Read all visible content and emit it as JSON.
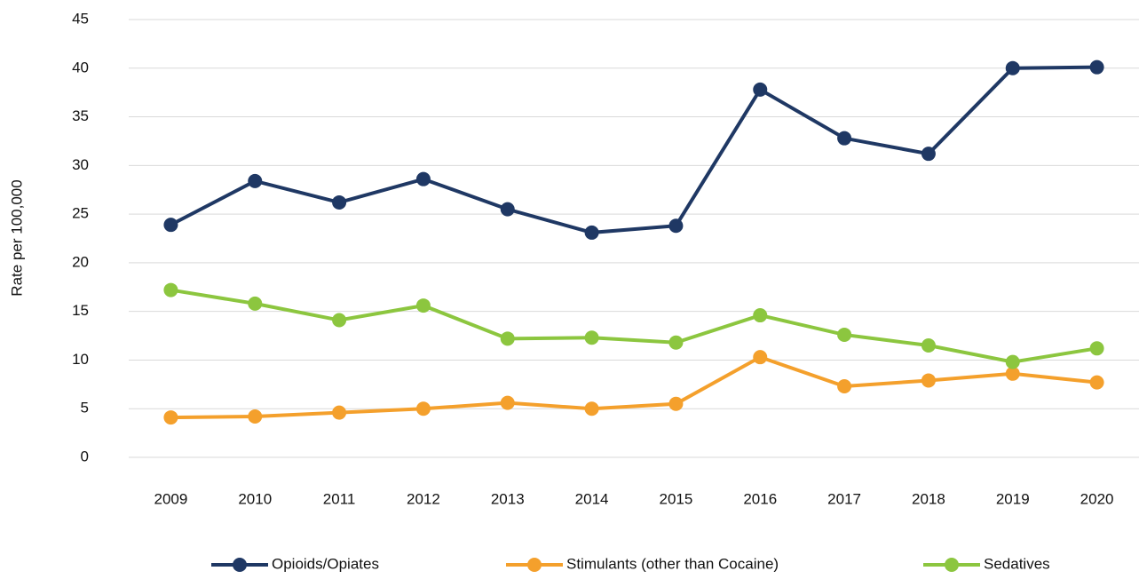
{
  "chart_data": {
    "type": "line",
    "y_label": "Rate per 100,000",
    "categories": [
      "2009",
      "2010",
      "2011",
      "2012",
      "2013",
      "2014",
      "2015",
      "2016",
      "2017",
      "2018",
      "2019",
      "2020"
    ],
    "series": [
      {
        "name": "Opioids/Opiates",
        "color": "#1f3864",
        "values": [
          23.9,
          28.4,
          26.2,
          28.6,
          25.5,
          23.1,
          23.8,
          37.8,
          32.8,
          31.2,
          40.0,
          40.1
        ]
      },
      {
        "name": "Stimulants (other than Cocaine)",
        "color": "#f4a02c",
        "values": [
          4.1,
          4.2,
          4.6,
          5.0,
          5.6,
          5.0,
          5.5,
          10.3,
          7.3,
          7.9,
          8.6,
          7.7
        ]
      },
      {
        "name": "Sedatives",
        "color": "#8cc63f",
        "values": [
          17.2,
          15.8,
          14.1,
          15.6,
          12.2,
          12.3,
          11.8,
          14.6,
          12.6,
          11.5,
          9.8,
          11.2
        ]
      }
    ],
    "ylim": [
      0,
      45
    ],
    "yticks": [
      0,
      5,
      10,
      15,
      20,
      25,
      30,
      35,
      40,
      45
    ],
    "grid": true,
    "legend": "bottom"
  }
}
